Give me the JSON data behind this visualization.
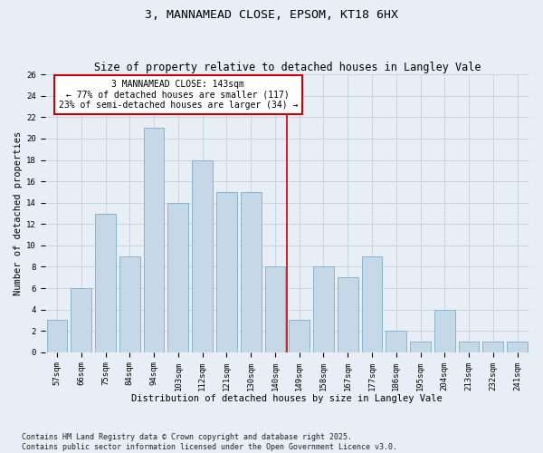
{
  "title": "3, MANNAMEAD CLOSE, EPSOM, KT18 6HX",
  "subtitle": "Size of property relative to detached houses in Langley Vale",
  "xlabel": "Distribution of detached houses by size in Langley Vale",
  "ylabel": "Number of detached properties",
  "categories": [
    "57sqm",
    "66sqm",
    "75sqm",
    "84sqm",
    "94sqm",
    "103sqm",
    "112sqm",
    "121sqm",
    "130sqm",
    "140sqm",
    "149sqm",
    "158sqm",
    "167sqm",
    "177sqm",
    "186sqm",
    "195sqm",
    "204sqm",
    "213sqm",
    "232sqm",
    "241sqm"
  ],
  "values": [
    3,
    6,
    13,
    9,
    21,
    14,
    18,
    15,
    15,
    8,
    3,
    8,
    7,
    9,
    2,
    1,
    4,
    1,
    1,
    1
  ],
  "bar_color": "#c5d8e8",
  "bar_edgecolor": "#8ab4cc",
  "marker_label_line1": "3 MANNAMEAD CLOSE: 143sqm",
  "marker_label_line2": "← 77% of detached houses are smaller (117)",
  "marker_label_line3": "23% of semi-detached houses are larger (34) →",
  "annotation_box_edgecolor": "#cc0000",
  "annotation_box_facecolor": "#ffffff",
  "vline_color": "#cc0000",
  "grid_color": "#c8d4e0",
  "background_color": "#e8eef5",
  "ylim": [
    0,
    26
  ],
  "yticks": [
    0,
    2,
    4,
    6,
    8,
    10,
    12,
    14,
    16,
    18,
    20,
    22,
    24,
    26
  ],
  "footnote": "Contains HM Land Registry data © Crown copyright and database right 2025.\nContains public sector information licensed under the Open Government Licence v3.0.",
  "title_fontsize": 9.5,
  "subtitle_fontsize": 8.5,
  "axis_label_fontsize": 7.5,
  "tick_fontsize": 6.5,
  "annotation_fontsize": 7,
  "footnote_fontsize": 6
}
